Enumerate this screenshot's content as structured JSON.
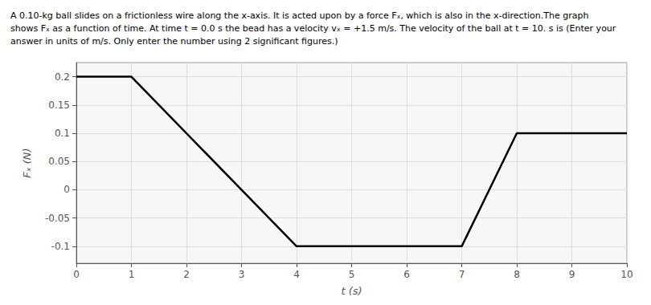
{
  "chart_data": {
    "type": "line",
    "title": "A 0.10-kg ball slides on a frictionless wire along the x-axis. It is acted upon by a force Fₓ, which is also in the x-direction.The graph\nshows Fₓ as a function of time. At time t = 0.0 s the bead has a velocity vₓ = +1.5 m/s. The velocity of the ball at t = 10. s is (Enter your\nanswer in units of m/s. Only enter the number using 2 significant figures.)",
    "x": [
      0,
      1,
      4,
      7,
      8,
      10
    ],
    "values": [
      0.2,
      0.2,
      -0.1,
      -0.1,
      0.1,
      0.1
    ],
    "color": "#000000",
    "xlabel": "t (s)",
    "ylabel": "Fₓ (N)",
    "xlim": [
      0,
      10
    ],
    "ylim": [
      -0.13,
      0.225
    ],
    "xticks": [
      0,
      1,
      2,
      3,
      4,
      5,
      6,
      7,
      8,
      9,
      10
    ],
    "yticks": [
      -0.1,
      -0.05,
      0,
      0.05,
      0.1,
      0.15,
      0.2
    ],
    "grid": true
  }
}
